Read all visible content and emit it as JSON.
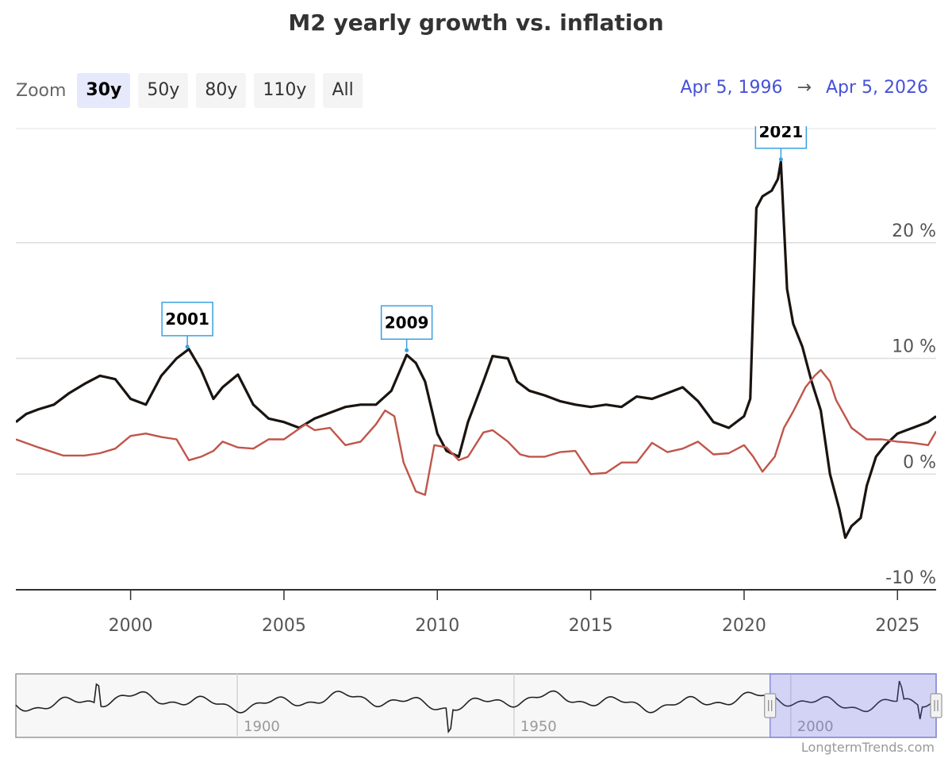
{
  "title": "M2 yearly growth vs. inflation",
  "zoom": {
    "label": "Zoom",
    "buttons": [
      "30y",
      "50y",
      "80y",
      "110y",
      "All"
    ],
    "active": "30y"
  },
  "range": {
    "from": "Apr 5, 1996",
    "arrow": "→",
    "to": "Apr 5, 2026"
  },
  "credit": "LongtermTrends.com",
  "colors": {
    "m2": "#1a1410",
    "inflation": "#c0554a",
    "annotation": "#3aa0e0",
    "navigator_fill": "rgba(102,102,240,0.25)"
  },
  "chart_data": {
    "type": "line",
    "title": "M2 yearly growth vs. inflation",
    "xlabel": "",
    "ylabel": "",
    "xlim": [
      1996.26,
      2026.26
    ],
    "ylim": [
      -10,
      30
    ],
    "y_ticks": [
      -10,
      0,
      10,
      20
    ],
    "y_tick_labels": [
      "-10 %",
      "0 %",
      "10 %",
      "20 %"
    ],
    "x_ticks": [
      2000,
      2005,
      2010,
      2015,
      2020,
      2025
    ],
    "x_tick_labels": [
      "2000",
      "2005",
      "2010",
      "2015",
      "2020",
      "2025"
    ],
    "grid": true,
    "series": [
      {
        "key": "m2",
        "x": [
          1996.26,
          1996.6,
          1997.0,
          1997.5,
          1998.0,
          1998.5,
          1999.0,
          1999.5,
          2000.0,
          2000.5,
          2001.0,
          2001.5,
          2001.9,
          2002.3,
          2002.7,
          2003.0,
          2003.5,
          2004.0,
          2004.5,
          2005.0,
          2005.5,
          2006.0,
          2006.5,
          2007.0,
          2007.5,
          2008.0,
          2008.5,
          2009.0,
          2009.3,
          2009.6,
          2010.0,
          2010.3,
          2010.7,
          2011.0,
          2011.5,
          2011.8,
          2012.3,
          2012.6,
          2013.0,
          2013.5,
          2014.0,
          2014.5,
          2015.0,
          2015.5,
          2016.0,
          2016.5,
          2017.0,
          2017.5,
          2018.0,
          2018.5,
          2019.0,
          2019.5,
          2020.0,
          2020.2,
          2020.4,
          2020.6,
          2020.9,
          2021.1,
          2021.2,
          2021.4,
          2021.6,
          2021.9,
          2022.2,
          2022.5,
          2022.8,
          2023.1,
          2023.3,
          2023.5,
          2023.8,
          2024.0,
          2024.3,
          2024.6,
          2025.0,
          2025.5,
          2026.0,
          2026.26
        ],
        "y": [
          4.5,
          5.2,
          5.6,
          6.0,
          7.0,
          7.8,
          8.5,
          8.2,
          6.5,
          6.0,
          8.5,
          10.0,
          10.8,
          9.0,
          6.5,
          7.5,
          8.6,
          6.0,
          4.8,
          4.5,
          4.0,
          4.8,
          5.3,
          5.8,
          6.0,
          6.0,
          7.2,
          10.3,
          9.6,
          8.0,
          3.5,
          2.0,
          1.5,
          4.5,
          8.0,
          10.2,
          10.0,
          8.0,
          7.2,
          6.8,
          6.3,
          6.0,
          5.8,
          6.0,
          5.8,
          6.7,
          6.5,
          7.0,
          7.5,
          6.3,
          4.5,
          4.0,
          5.0,
          6.5,
          23.0,
          24.0,
          24.5,
          25.5,
          27.0,
          16.0,
          13.0,
          11.0,
          8.0,
          5.5,
          0.0,
          -3.0,
          -5.5,
          -4.5,
          -3.8,
          -1.0,
          1.5,
          2.5,
          3.5,
          4.0,
          4.5,
          5.0
        ]
      },
      {
        "key": "inflation",
        "x": [
          1996.26,
          1997.0,
          1997.8,
          1998.5,
          1999.0,
          1999.5,
          2000.0,
          2000.5,
          2001.0,
          2001.5,
          2001.9,
          2002.3,
          2002.7,
          2003.0,
          2003.5,
          2004.0,
          2004.5,
          2005.0,
          2005.7,
          2006.0,
          2006.5,
          2007.0,
          2007.5,
          2008.0,
          2008.3,
          2008.6,
          2008.9,
          2009.3,
          2009.6,
          2009.9,
          2010.3,
          2010.7,
          2011.0,
          2011.5,
          2011.8,
          2012.3,
          2012.7,
          2013.0,
          2013.5,
          2014.0,
          2014.5,
          2015.0,
          2015.5,
          2016.0,
          2016.5,
          2017.0,
          2017.5,
          2018.0,
          2018.5,
          2019.0,
          2019.5,
          2020.0,
          2020.3,
          2020.6,
          2021.0,
          2021.3,
          2021.6,
          2022.0,
          2022.3,
          2022.5,
          2022.8,
          2023.0,
          2023.5,
          2024.0,
          2024.5,
          2025.0,
          2025.5,
          2026.0,
          2026.26
        ],
        "y": [
          3.0,
          2.3,
          1.6,
          1.6,
          1.8,
          2.2,
          3.3,
          3.5,
          3.2,
          3.0,
          1.2,
          1.5,
          2.0,
          2.8,
          2.3,
          2.2,
          3.0,
          3.0,
          4.3,
          3.8,
          4.0,
          2.5,
          2.8,
          4.3,
          5.5,
          5.0,
          1.0,
          -1.5,
          -1.8,
          2.5,
          2.3,
          1.2,
          1.5,
          3.6,
          3.8,
          2.8,
          1.7,
          1.5,
          1.5,
          1.9,
          2.0,
          0.0,
          0.1,
          1.0,
          1.0,
          2.7,
          1.9,
          2.2,
          2.8,
          1.7,
          1.8,
          2.5,
          1.5,
          0.2,
          1.5,
          4.0,
          5.4,
          7.5,
          8.5,
          9.0,
          8.0,
          6.4,
          4.0,
          3.0,
          3.0,
          2.8,
          2.7,
          2.5,
          3.7
        ]
      }
    ],
    "annotations": [
      {
        "label": "2001",
        "x": 2001.85,
        "y": 11.0
      },
      {
        "label": "2009",
        "x": 2009.0,
        "y": 10.7
      },
      {
        "label": "2021",
        "x": 2021.2,
        "y": 27.2
      }
    ],
    "navigator": {
      "xlim": [
        1860,
        2026.26
      ],
      "x_ticks": [
        1900,
        1950,
        2000
      ],
      "x_tick_labels": [
        "1900",
        "1950",
        "2000"
      ],
      "selected": [
        1996.26,
        2026.26
      ]
    }
  }
}
